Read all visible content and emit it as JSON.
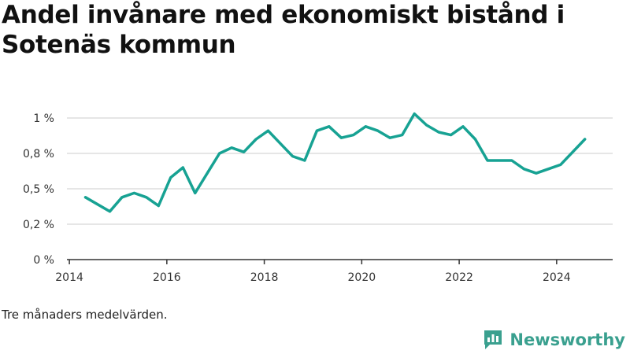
{
  "header": {
    "title": "Andel invånare med ekonomiskt bistånd i Sotenäs kommun"
  },
  "footer": {
    "note": "Tre månaders medelvärden.",
    "brand": "Newsworthy",
    "brand_icon": "bar-chart-logo-icon"
  },
  "colors": {
    "line": "#17a293",
    "grid": "#dddddd",
    "axis": "#333333",
    "brand": "#3aa08f"
  },
  "chart_data": {
    "type": "line",
    "title": "Andel invånare med ekonomiskt bistånd i Sotenäs kommun",
    "xlabel": "",
    "ylabel": "",
    "xlim": [
      2013.95,
      2025.15
    ],
    "ylim": [
      0,
      1.0
    ],
    "grid": true,
    "x_ticks": [
      2014,
      2016,
      2018,
      2020,
      2022,
      2024
    ],
    "x_tick_labels": [
      "2014",
      "2016",
      "2018",
      "2020",
      "2022",
      "2024"
    ],
    "y_ticks": [
      0,
      0.25,
      0.5,
      0.75,
      1.0
    ],
    "y_tick_labels": [
      "0 %",
      "0,2 %",
      "0,5 %",
      "0,8 %",
      "1 %"
    ],
    "series": [
      {
        "x": [
          2014.33,
          2014.58,
          2014.83,
          2015.08,
          2015.33,
          2015.58,
          2015.83,
          2016.08,
          2016.33,
          2016.58,
          2016.83,
          2017.08,
          2017.33,
          2017.58,
          2017.83,
          2018.08,
          2018.33,
          2018.58,
          2018.83,
          2019.08,
          2019.33,
          2019.58,
          2019.83,
          2020.08,
          2020.33,
          2020.58,
          2020.83,
          2021.08,
          2021.33,
          2021.58,
          2021.83,
          2022.08,
          2022.33,
          2022.58,
          2022.83,
          2023.08,
          2023.33,
          2023.58,
          2023.83,
          2024.08,
          2024.58
        ],
        "values": [
          0.44,
          0.39,
          0.34,
          0.44,
          0.47,
          0.44,
          0.38,
          0.58,
          0.65,
          0.47,
          0.61,
          0.75,
          0.79,
          0.76,
          0.85,
          0.91,
          0.82,
          0.73,
          0.7,
          0.91,
          0.94,
          0.86,
          0.88,
          0.94,
          0.91,
          0.86,
          0.88,
          1.03,
          0.95,
          0.9,
          0.88,
          0.94,
          0.85,
          0.7,
          0.7,
          0.7,
          0.64,
          0.61,
          0.64,
          0.67,
          0.85
        ]
      }
    ]
  }
}
